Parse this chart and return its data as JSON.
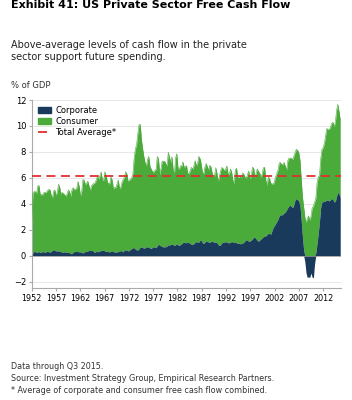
{
  "title_bold": "Exhibit 41: US Private Sector Free Cash Flow",
  "subtitle": "Above-average levels of cash flow in the private\nsector support future spending.",
  "ylabel": "% of GDP",
  "xlim": [
    1952,
    2015.75
  ],
  "ylim": [
    -2.5,
    12
  ],
  "yticks": [
    -2,
    0,
    2,
    4,
    6,
    8,
    10,
    12
  ],
  "xticks": [
    1952,
    1957,
    1962,
    1967,
    1972,
    1977,
    1982,
    1987,
    1992,
    1997,
    2002,
    2007,
    2012
  ],
  "total_average": 6.1,
  "corporate_color": "#1a3a5c",
  "consumer_color": "#4aab3a",
  "average_color": "#e03030",
  "footnote1": "Data through Q3 2015.",
  "footnote2": "Source: Investment Strategy Group, Empirical Research Partners.",
  "footnote3": "* Average of corporate and consumer free cash flow combined."
}
